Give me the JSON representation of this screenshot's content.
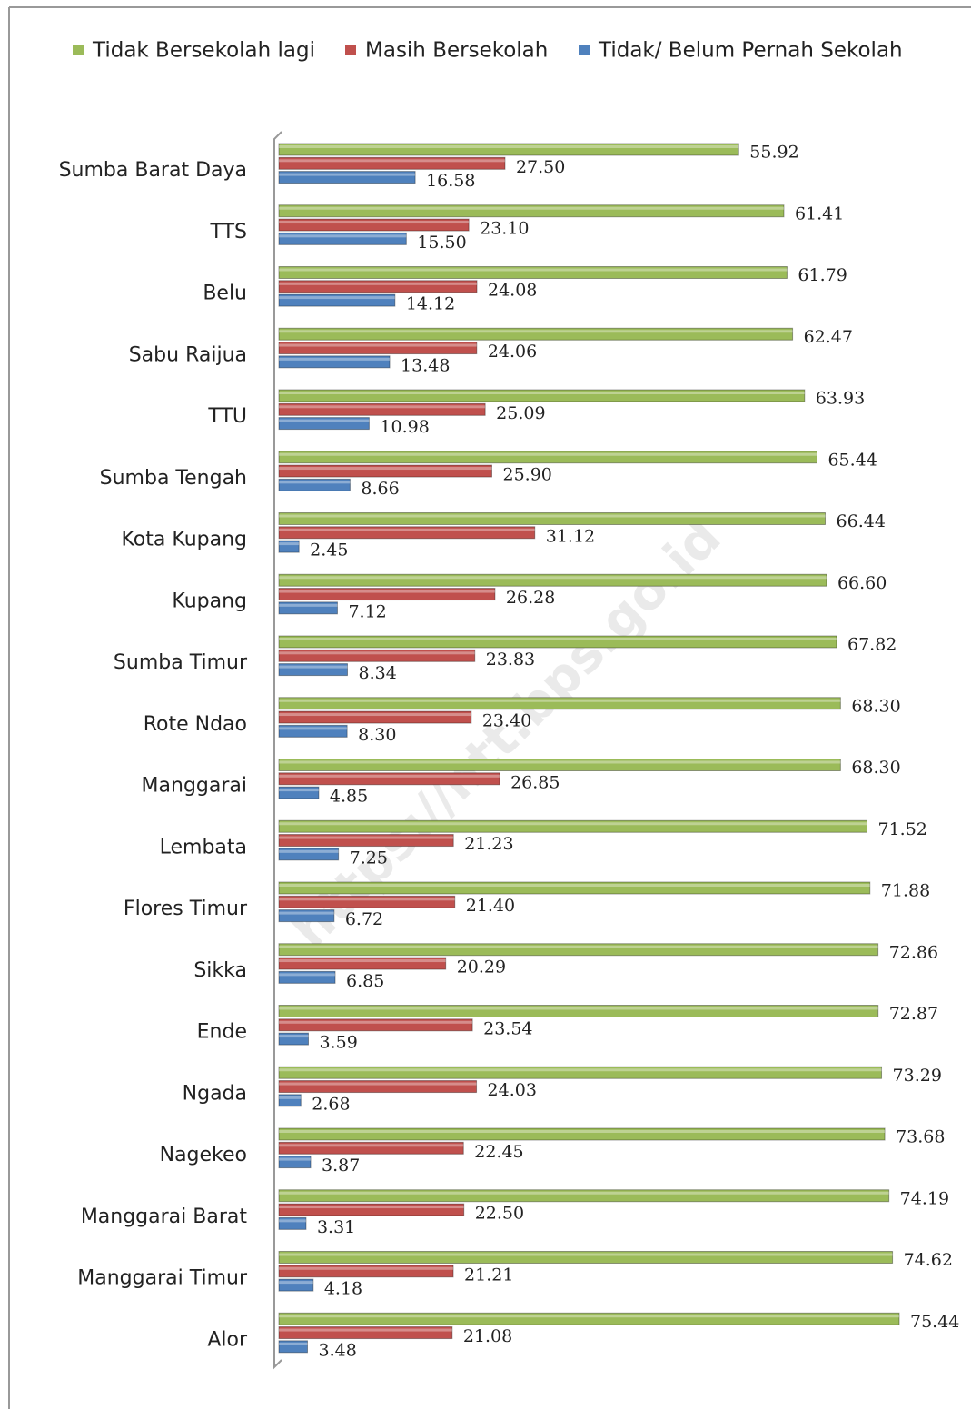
{
  "chart_data": {
    "type": "hbar",
    "watermark": "https://ntt.bps.go.id",
    "categories": [
      "Sumba Barat Daya",
      "TTS",
      "Belu",
      "Sabu Raijua",
      "TTU",
      "Sumba Tengah",
      "Kota Kupang",
      "Kupang",
      "Sumba Timur",
      "Rote Ndao",
      "Manggarai",
      "Lembata",
      "Flores Timur",
      "Sikka",
      "Ende",
      "Ngada",
      "Nagekeo",
      "Manggarai Barat",
      "Manggarai Timur",
      "Alor"
    ],
    "legend": "top",
    "series": [
      {
        "name": "Tidak Bersekolah lagi",
        "color": "#9bbb59",
        "values": [
          55.92,
          61.41,
          61.79,
          62.47,
          63.93,
          65.44,
          66.44,
          66.6,
          67.82,
          68.3,
          68.3,
          71.52,
          71.88,
          72.86,
          72.87,
          73.29,
          73.68,
          74.19,
          74.62,
          75.44
        ],
        "value_labels": [
          "55.92",
          "61.41",
          "61.79",
          "62.47",
          "63.93",
          "65.44",
          "66.44",
          "66.60",
          "67.82",
          "68.30",
          "68.30",
          "71.52",
          "71.88",
          "72.86",
          "72.87",
          "73.29",
          "73.68",
          "74.19",
          "74.62",
          "75.44"
        ]
      },
      {
        "name": "Masih Bersekolah",
        "color": "#c0504d",
        "values": [
          27.5,
          23.1,
          24.08,
          24.06,
          25.09,
          25.9,
          31.12,
          26.28,
          23.83,
          23.4,
          26.85,
          21.23,
          21.4,
          20.29,
          23.54,
          24.03,
          22.45,
          22.5,
          21.21,
          21.08
        ],
        "value_labels": [
          "27.50",
          "23.10",
          "24.08",
          "24.06",
          "25.09",
          "25.90",
          "31.12",
          "26.28",
          "23.83",
          "23.40",
          "26.85",
          "21.23",
          "21.40",
          "20.29",
          "23.54",
          "24.03",
          "22.45",
          "22.50",
          "21.21",
          "21.08"
        ]
      },
      {
        "name": "Tidak/ Belum Pernah Sekolah",
        "color": "#4f81bd",
        "values": [
          16.58,
          15.5,
          14.12,
          13.48,
          10.98,
          8.66,
          2.45,
          7.12,
          8.34,
          8.3,
          4.85,
          7.25,
          6.72,
          6.85,
          3.59,
          2.68,
          3.87,
          3.31,
          4.18,
          3.48
        ],
        "value_labels": [
          "16.58",
          "15.50",
          "14.12",
          "13.48",
          "10.98",
          "8.66",
          "2.45",
          "7.12",
          "8.34",
          "8.30",
          "4.85",
          "7.25",
          "6.72",
          "6.85",
          "3.59",
          "2.68",
          "3.87",
          "3.31",
          "4.18",
          "3.48"
        ]
      }
    ]
  }
}
